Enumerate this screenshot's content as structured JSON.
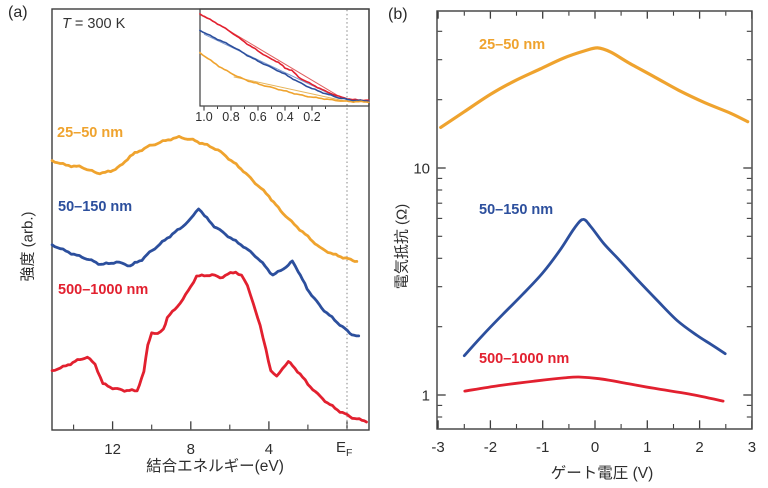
{
  "colors": {
    "orange": "#EFA32E",
    "blue": "#2C4F9D",
    "red": "#E2202F",
    "fit_orange": "#E6B55C",
    "fit_blue": "#7B97CE",
    "fit_red": "#E06060",
    "axis": "#3D3D3D",
    "text": "#2E2E2E",
    "dotted": "#999999"
  },
  "panel_a": {
    "tag": "(a)",
    "temp_label": {
      "italic": "T",
      "rest": " = 300 K"
    },
    "xlabel": "結合エネルギー(eV)",
    "ylabel": "強度 (arb.)",
    "ef_label": {
      "main": "E",
      "sub": "F"
    },
    "legend": [
      {
        "label": "25–50 nm"
      },
      {
        "label": "50–150 nm"
      },
      {
        "label": "500–1000 nm"
      }
    ]
  },
  "panel_b": {
    "tag": "(b)",
    "xlabel": "ゲート電圧 (V)",
    "ylabel": "電気抵抗 (Ω)",
    "legend": [
      {
        "label": "25–50 nm"
      },
      {
        "label": "50–150 nm"
      },
      {
        "label": "500–1000 nm"
      }
    ]
  },
  "chart_data": [
    {
      "id": "a_main",
      "type": "line",
      "title": "Photoemission spectra, T = 300 K",
      "xlabel": "結合エネルギー(eV)",
      "ylabel": "強度 (arb.)",
      "x_axis": {
        "range": [
          15.1,
          -1.1
        ],
        "major_ticks": [
          12,
          8,
          4,
          0
        ],
        "minor_ticks": [
          14,
          10,
          6,
          2
        ],
        "labeled_ticks": [
          {
            "v": 12,
            "t": "12"
          },
          {
            "v": 8,
            "t": "8"
          },
          {
            "v": 4,
            "t": "4"
          }
        ],
        "ef_tick": 0
      },
      "y_axis": {
        "units": "arb."
      },
      "series": [
        {
          "name": "25–50 nm",
          "color": "#EFA32E",
          "points": [
            [
              15.1,
              0.64
            ],
            [
              14.4,
              0.63
            ],
            [
              13.7,
              0.625
            ],
            [
              12.8,
              0.61
            ],
            [
              12.1,
              0.615
            ],
            [
              11.5,
              0.63
            ],
            [
              11.1,
              0.65
            ],
            [
              10.5,
              0.666
            ],
            [
              10.1,
              0.676
            ],
            [
              9.3,
              0.687
            ],
            [
              8.6,
              0.695
            ],
            [
              7.9,
              0.69
            ],
            [
              7.3,
              0.679
            ],
            [
              6.6,
              0.664
            ],
            [
              5.8,
              0.636
            ],
            [
              5.3,
              0.616
            ],
            [
              4.7,
              0.586
            ],
            [
              4.0,
              0.555
            ],
            [
              3.4,
              0.522
            ],
            [
              2.7,
              0.488
            ],
            [
              2.0,
              0.458
            ],
            [
              1.4,
              0.434
            ],
            [
              0.7,
              0.418
            ],
            [
              0.2,
              0.409
            ],
            [
              -0.3,
              0.402
            ],
            [
              -0.5,
              0.401
            ]
          ]
        },
        {
          "name": "50–150 nm",
          "color": "#2C4F9D",
          "points": [
            [
              15.1,
              0.44
            ],
            [
              14.4,
              0.426
            ],
            [
              13.7,
              0.412
            ],
            [
              12.6,
              0.394
            ],
            [
              11.8,
              0.399
            ],
            [
              11.1,
              0.389
            ],
            [
              10.5,
              0.405
            ],
            [
              10.1,
              0.423
            ],
            [
              9.2,
              0.455
            ],
            [
              8.55,
              0.478
            ],
            [
              8.0,
              0.502
            ],
            [
              7.6,
              0.528
            ],
            [
              7.3,
              0.509
            ],
            [
              6.8,
              0.483
            ],
            [
              6.1,
              0.461
            ],
            [
              5.3,
              0.437
            ],
            [
              4.7,
              0.413
            ],
            [
              4.2,
              0.389
            ],
            [
              3.8,
              0.368
            ],
            [
              3.4,
              0.38
            ],
            [
              3.0,
              0.392
            ],
            [
              2.8,
              0.401
            ],
            [
              2.5,
              0.377
            ],
            [
              2.05,
              0.335
            ],
            [
              1.3,
              0.291
            ],
            [
              0.5,
              0.255
            ],
            [
              -0.15,
              0.229
            ],
            [
              -0.6,
              0.222
            ]
          ]
        },
        {
          "name": "500–1000 nm",
          "color": "#E2202F",
          "points": [
            [
              15.1,
              0.141
            ],
            [
              14.4,
              0.153
            ],
            [
              13.8,
              0.165
            ],
            [
              13.3,
              0.172
            ],
            [
              12.9,
              0.156
            ],
            [
              12.5,
              0.111
            ],
            [
              12.0,
              0.1
            ],
            [
              11.4,
              0.093
            ],
            [
              10.75,
              0.093
            ],
            [
              10.4,
              0.139
            ],
            [
              10.2,
              0.203
            ],
            [
              10.0,
              0.232
            ],
            [
              9.7,
              0.227
            ],
            [
              9.4,
              0.239
            ],
            [
              9.2,
              0.266
            ],
            [
              8.8,
              0.287
            ],
            [
              8.4,
              0.311
            ],
            [
              8.0,
              0.342
            ],
            [
              7.7,
              0.366
            ],
            [
              7.3,
              0.366
            ],
            [
              6.9,
              0.368
            ],
            [
              6.5,
              0.361
            ],
            [
              6.1,
              0.371
            ],
            [
              5.7,
              0.376
            ],
            [
              5.4,
              0.368
            ],
            [
              5.1,
              0.342
            ],
            [
              4.8,
              0.301
            ],
            [
              4.45,
              0.246
            ],
            [
              4.15,
              0.191
            ],
            [
              3.9,
              0.141
            ],
            [
              3.6,
              0.127
            ],
            [
              3.3,
              0.148
            ],
            [
              3.0,
              0.163
            ],
            [
              2.8,
              0.153
            ],
            [
              2.4,
              0.132
            ],
            [
              2.0,
              0.108
            ],
            [
              1.5,
              0.086
            ],
            [
              1.0,
              0.065
            ],
            [
              0.36,
              0.043
            ],
            [
              -0.26,
              0.029
            ],
            [
              -1.0,
              0.022
            ]
          ]
        }
      ]
    },
    {
      "id": "a_inset",
      "type": "line",
      "title": "Near-EF region",
      "x_axis": {
        "range": [
          1.03,
          -0.22
        ],
        "major_ticks": [
          1.0,
          0.8,
          0.6,
          0.4,
          0.2
        ],
        "minor_ticks": [
          0.9,
          0.7,
          0.5,
          0.3,
          0.1
        ],
        "labeled_ticks": [
          {
            "v": 1.0,
            "t": "1.0"
          },
          {
            "v": 0.8,
            "t": "0.8"
          },
          {
            "v": 0.6,
            "t": "0.6"
          },
          {
            "v": 0.4,
            "t": "0.4"
          },
          {
            "v": 0.2,
            "t": "0.2"
          }
        ],
        "ef_tick": 0
      },
      "series": [
        {
          "name": "500–1000 nm",
          "color": "#E2202F",
          "points": [
            [
              1.03,
              0.95
            ],
            [
              0.9,
              0.85
            ],
            [
              0.8,
              0.76
            ],
            [
              0.7,
              0.66
            ],
            [
              0.6,
              0.57
            ],
            [
              0.5,
              0.48
            ],
            [
              0.45,
              0.45
            ],
            [
              0.4,
              0.39
            ],
            [
              0.35,
              0.37
            ],
            [
              0.3,
              0.3
            ],
            [
              0.2,
              0.22
            ],
            [
              0.1,
              0.15
            ],
            [
              0.0,
              0.1
            ],
            [
              -0.1,
              0.065
            ],
            [
              -0.22,
              0.055
            ]
          ]
        },
        {
          "name": "50–150 nm",
          "color": "#2C4F9D",
          "points": [
            [
              1.03,
              0.78
            ],
            [
              0.9,
              0.69
            ],
            [
              0.8,
              0.62
            ],
            [
              0.7,
              0.54
            ],
            [
              0.6,
              0.465
            ],
            [
              0.5,
              0.395
            ],
            [
              0.4,
              0.325
            ],
            [
              0.3,
              0.25
            ],
            [
              0.2,
              0.18
            ],
            [
              0.1,
              0.125
            ],
            [
              0.0,
              0.085
            ],
            [
              -0.1,
              0.06
            ],
            [
              -0.22,
              0.05
            ]
          ]
        },
        {
          "name": "25–50 nm",
          "color": "#EFA32E",
          "points": [
            [
              1.03,
              0.55
            ],
            [
              0.95,
              0.47
            ],
            [
              0.85,
              0.375
            ],
            [
              0.75,
              0.3
            ],
            [
              0.65,
              0.25
            ],
            [
              0.55,
              0.21
            ],
            [
              0.45,
              0.17
            ],
            [
              0.35,
              0.135
            ],
            [
              0.25,
              0.105
            ],
            [
              0.15,
              0.08
            ],
            [
              0.05,
              0.06
            ],
            [
              -0.05,
              0.05
            ],
            [
              -0.22,
              0.04
            ]
          ]
        }
      ],
      "fit_lines": [
        {
          "name": "fit-red",
          "color": "#E06060",
          "points": [
            [
              1.0,
              0.93
            ],
            [
              0.0,
              0.1
            ]
          ]
        },
        {
          "name": "fit-blue",
          "color": "#7B97CE",
          "points": [
            [
              1.0,
              0.74
            ],
            [
              0.0,
              0.08
            ]
          ]
        },
        {
          "name": "fit-orange",
          "color": "#E6B55C",
          "points": [
            [
              0.78,
              0.3
            ],
            [
              -0.05,
              0.05
            ]
          ]
        }
      ]
    },
    {
      "id": "b",
      "type": "line",
      "title": "Resistance vs gate voltage",
      "xlabel": "ゲート電圧 (V)",
      "ylabel": "電気抵抗 (Ω)",
      "y_scale": "log",
      "x_axis": {
        "range": [
          -3,
          3
        ],
        "major_ticks": [
          -3,
          -2,
          -1,
          0,
          1,
          2,
          3
        ],
        "minor_ticks": [
          -2.5,
          -1.5,
          -0.5,
          0.5,
          1.5,
          2.5
        ],
        "labeled_ticks": [
          {
            "v": -3,
            "t": "-3"
          },
          {
            "v": -2,
            "t": "-2"
          },
          {
            "v": -1,
            "t": "-1"
          },
          {
            "v": 0,
            "t": "0"
          },
          {
            "v": 1,
            "t": "1"
          },
          {
            "v": 2,
            "t": "2"
          },
          {
            "v": 3,
            "t": "3"
          }
        ]
      },
      "y_axis": {
        "range": [
          0.71,
          49
        ],
        "major_ticks": [
          10,
          1
        ],
        "minor_ticks": [
          40,
          30,
          20,
          9,
          8,
          7,
          6,
          5,
          4,
          3,
          2,
          0.9,
          0.8
        ],
        "labeled_ticks": [
          {
            "v": 10,
            "t": "10"
          },
          {
            "v": 1,
            "t": "1"
          }
        ]
      },
      "series": [
        {
          "name": "25–50 nm",
          "color": "#EFA32E",
          "points": [
            [
              -2.95,
              15.1
            ],
            [
              -2.5,
              17.7
            ],
            [
              -2.0,
              21.1
            ],
            [
              -1.55,
              24.1
            ],
            [
              -1.05,
              27.3
            ],
            [
              -0.6,
              30.5
            ],
            [
              -0.2,
              32.8
            ],
            [
              0.05,
              33.8
            ],
            [
              0.3,
              32.4
            ],
            [
              0.65,
              29.0
            ],
            [
              1.15,
              25.1
            ],
            [
              1.6,
              22.0
            ],
            [
              2.1,
              19.4
            ],
            [
              2.6,
              17.4
            ],
            [
              2.92,
              16.0
            ]
          ]
        },
        {
          "name": "50–150 nm",
          "color": "#2C4F9D",
          "points": [
            [
              -2.5,
              1.49
            ],
            [
              -2.15,
              1.83
            ],
            [
              -1.76,
              2.27
            ],
            [
              -1.38,
              2.78
            ],
            [
              -1.0,
              3.45
            ],
            [
              -0.65,
              4.41
            ],
            [
              -0.4,
              5.41
            ],
            [
              -0.23,
              5.94
            ],
            [
              -0.08,
              5.52
            ],
            [
              0.17,
              4.64
            ],
            [
              0.46,
              3.94
            ],
            [
              0.8,
              3.24
            ],
            [
              1.19,
              2.61
            ],
            [
              1.57,
              2.13
            ],
            [
              1.95,
              1.83
            ],
            [
              2.22,
              1.67
            ],
            [
              2.49,
              1.52
            ]
          ]
        },
        {
          "name": "500–1000 nm",
          "color": "#E2202F",
          "points": [
            [
              -2.49,
              1.04
            ],
            [
              -1.84,
              1.1
            ],
            [
              -1.17,
              1.15
            ],
            [
              -0.59,
              1.19
            ],
            [
              -0.31,
              1.2
            ],
            [
              0.08,
              1.18
            ],
            [
              0.56,
              1.13
            ],
            [
              1.13,
              1.07
            ],
            [
              1.8,
              1.01
            ],
            [
              2.45,
              0.94
            ]
          ]
        }
      ]
    }
  ]
}
